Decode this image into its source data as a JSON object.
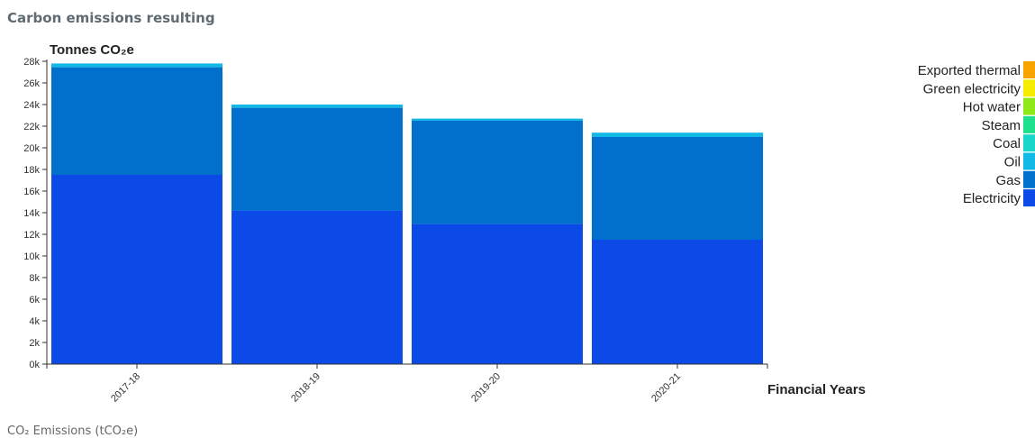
{
  "title": "Carbon emissions resulting",
  "footer": "CO₂ Emissions (tCO₂e)",
  "chart_data": {
    "type": "bar",
    "stacked": true,
    "ylabel": "Tonnes CO₂e",
    "xlabel": "Financial Years",
    "categories": [
      "2017-18",
      "2018-19",
      "2019-20",
      "2020-21"
    ],
    "ylim": [
      0,
      28000
    ],
    "yticks": [
      0,
      2000,
      4000,
      6000,
      8000,
      10000,
      12000,
      14000,
      16000,
      18000,
      20000,
      22000,
      24000,
      26000,
      28000
    ],
    "ytick_labels": [
      "0k",
      "2k",
      "4k",
      "6k",
      "8k",
      "10k",
      "12k",
      "14k",
      "16k",
      "18k",
      "20k",
      "22k",
      "24k",
      "26k",
      "28k"
    ],
    "series": [
      {
        "name": "Electricity",
        "color": "#0b4ae6",
        "values": [
          17500,
          14200,
          12950,
          11500
        ]
      },
      {
        "name": "Gas",
        "color": "#0070cc",
        "values": [
          9950,
          9500,
          9550,
          9500
        ]
      },
      {
        "name": "Oil",
        "color": "#13b9e6",
        "values": [
          350,
          300,
          200,
          400
        ]
      },
      {
        "name": "Coal",
        "color": "#18d6c8",
        "values": [
          0,
          0,
          0,
          0
        ]
      },
      {
        "name": "Steam",
        "color": "#1fe08c",
        "values": [
          0,
          0,
          0,
          0
        ]
      },
      {
        "name": "Hot water",
        "color": "#8ee81a",
        "values": [
          0,
          0,
          0,
          0
        ]
      },
      {
        "name": "Green electricity",
        "color": "#f5ec00",
        "values": [
          0,
          0,
          0,
          0
        ]
      },
      {
        "name": "Exported thermal",
        "color": "#f8a400",
        "values": [
          0,
          0,
          0,
          0
        ]
      }
    ],
    "legend_order": [
      "Exported thermal",
      "Green electricity",
      "Hot water",
      "Steam",
      "Coal",
      "Oil",
      "Gas",
      "Electricity"
    ],
    "legend_position": "right",
    "grid": false
  }
}
